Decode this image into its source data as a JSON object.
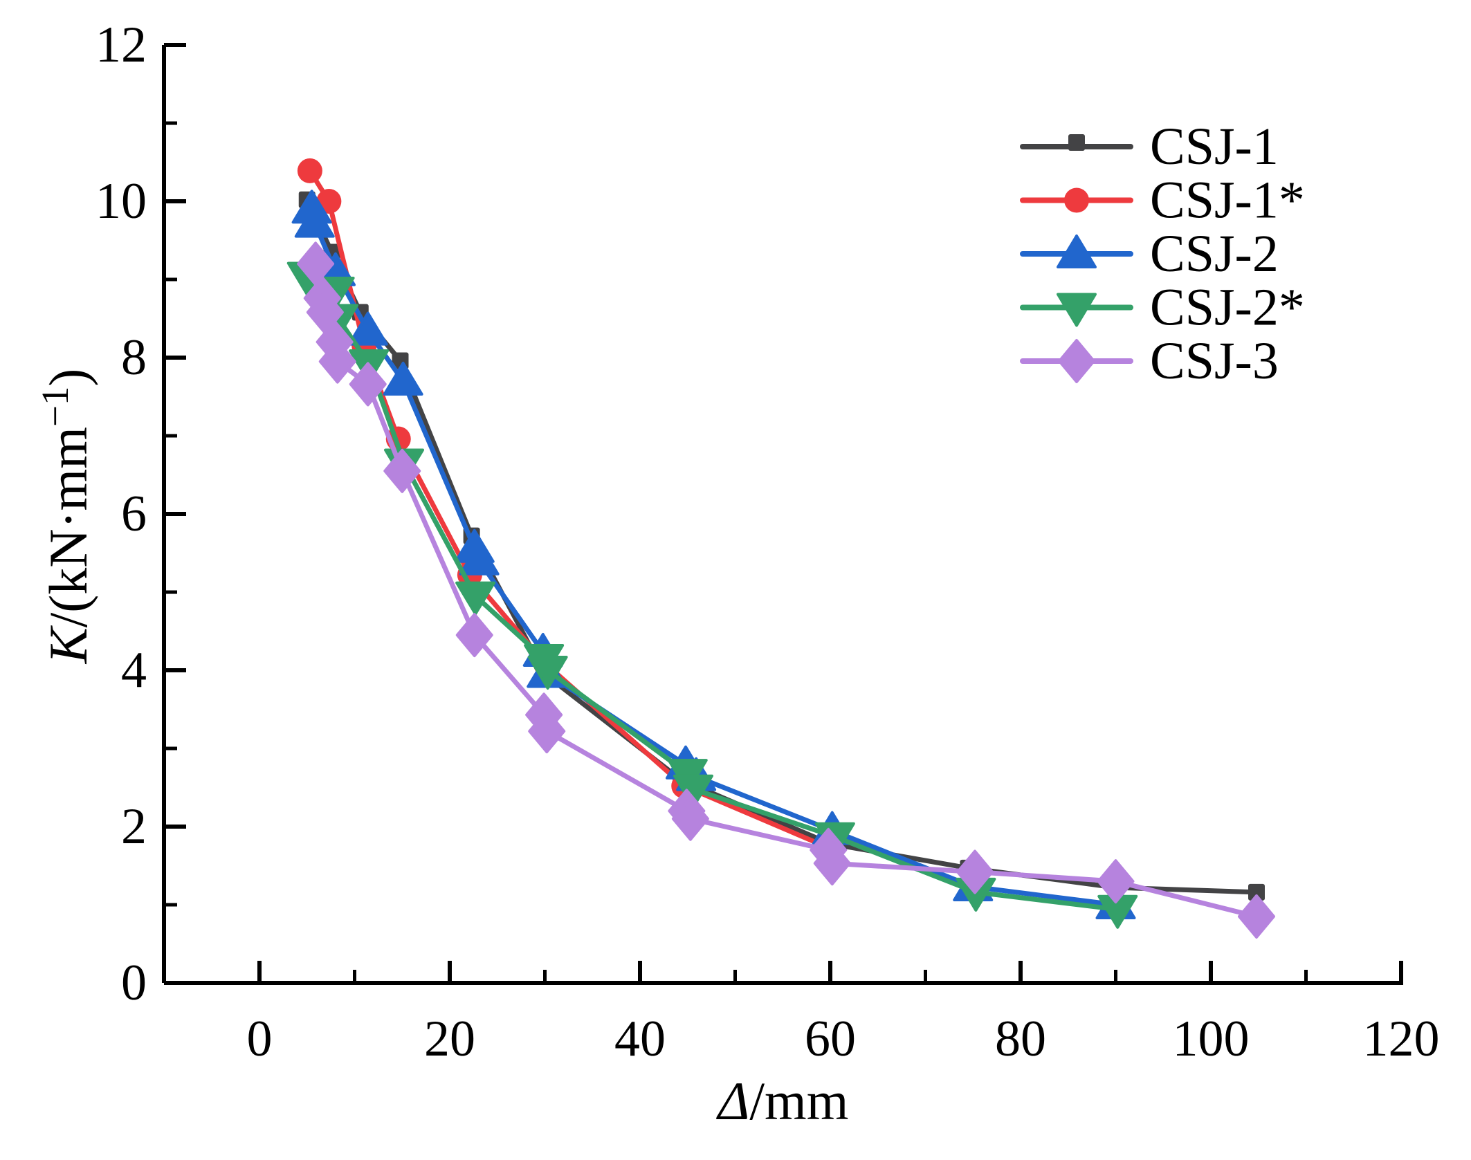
{
  "chart_data": {
    "type": "line",
    "title": "",
    "xlabel": {
      "symbol": "Δ",
      "unit": "/mm"
    },
    "ylabel": {
      "symbol": "K",
      "unit_prefix": "/(kN·mm",
      "superscript": "−1",
      "close": ")"
    },
    "xlim": [
      -10,
      120
    ],
    "ylim": [
      0,
      12
    ],
    "x_major_ticks": [
      0,
      20,
      40,
      60,
      80,
      100,
      120
    ],
    "x_minor_ticks": [
      10,
      30,
      50,
      70,
      90,
      110
    ],
    "y_major_ticks": [
      0,
      2,
      4,
      6,
      8,
      10,
      12
    ],
    "y_minor_ticks": [
      1,
      3,
      5,
      7,
      9,
      11
    ],
    "grid": false,
    "legend_position": "upper-right",
    "axis_color": "#000000",
    "text_color": "#000000",
    "series": [
      {
        "name": "CSJ-1",
        "color": "#434345",
        "marker": "square",
        "points": [
          [
            5,
            10.02
          ],
          [
            7.6,
            9.35
          ],
          [
            10.6,
            8.58
          ],
          [
            14.8,
            7.96
          ],
          [
            22.3,
            5.72
          ],
          [
            30,
            3.95
          ],
          [
            44.3,
            2.6
          ],
          [
            60,
            1.78
          ],
          [
            74.5,
            1.47
          ],
          [
            90,
            1.22
          ],
          [
            104.8,
            1.16
          ]
        ]
      },
      {
        "name": "CSJ-1*",
        "color": "#ee3a3e",
        "marker": "circle",
        "points": [
          [
            5.3,
            10.39
          ],
          [
            7.3,
            10.0
          ],
          [
            11,
            8.15
          ],
          [
            14.6,
            6.96
          ],
          [
            22.1,
            5.22
          ],
          [
            30.1,
            4.08
          ],
          [
            44.6,
            2.52
          ],
          [
            60,
            1.72
          ]
        ]
      },
      {
        "name": "CSJ-2",
        "color": "#2166cd",
        "marker": "triangle-up",
        "points": [
          [
            5.5,
            9.9
          ],
          [
            5.8,
            9.72
          ],
          [
            8,
            9.1
          ],
          [
            11.4,
            8.34
          ],
          [
            15.1,
            7.7
          ],
          [
            22.6,
            5.56
          ],
          [
            23.1,
            5.4
          ],
          [
            29.8,
            4.23
          ],
          [
            30.2,
            3.96
          ],
          [
            44.8,
            2.79
          ],
          [
            45.9,
            2.64
          ],
          [
            60.2,
            1.95
          ],
          [
            75,
            1.23
          ],
          [
            90,
            1.0
          ]
        ]
      },
      {
        "name": "CSJ-2*",
        "color": "#34a169",
        "marker": "triangle-down",
        "points": [
          [
            5,
            9.04
          ],
          [
            7.9,
            8.85
          ],
          [
            8.3,
            8.5
          ],
          [
            11.5,
            7.92
          ],
          [
            15.2,
            6.65
          ],
          [
            22.7,
            4.95
          ],
          [
            29.9,
            4.15
          ],
          [
            30.3,
            4.0
          ],
          [
            45,
            2.68
          ],
          [
            45.6,
            2.48
          ],
          [
            60.5,
            1.87
          ],
          [
            75.3,
            1.16
          ],
          [
            90.2,
            0.94
          ]
        ]
      },
      {
        "name": "CSJ-3",
        "color": "#b683de",
        "marker": "diamond",
        "points": [
          [
            5.9,
            9.2
          ],
          [
            6.6,
            8.76
          ],
          [
            6.9,
            8.58
          ],
          [
            7.9,
            8.2
          ],
          [
            8.2,
            7.95
          ],
          [
            11.4,
            7.66
          ],
          [
            15,
            6.55
          ],
          [
            22.6,
            4.45
          ],
          [
            29.9,
            3.43
          ],
          [
            30.2,
            3.22
          ],
          [
            44.9,
            2.2
          ],
          [
            45.3,
            2.1
          ],
          [
            59.8,
            1.7
          ],
          [
            60.2,
            1.53
          ],
          [
            75.2,
            1.42
          ],
          [
            90,
            1.3
          ],
          [
            104.8,
            0.85
          ]
        ]
      }
    ]
  }
}
